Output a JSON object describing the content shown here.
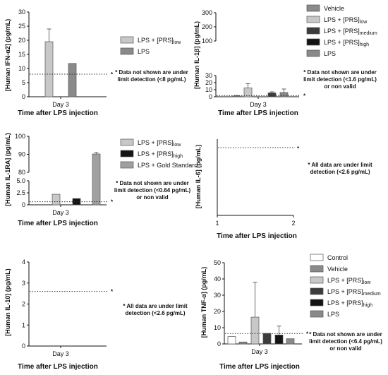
{
  "chart_data": [
    {
      "type": "bar",
      "ylabel": "[Human IFN-α2] (pg/mL)",
      "xtick": "Day 3",
      "xlabel": "Time after LPS injection",
      "yticks": [
        "0",
        "5",
        "10",
        "15",
        "20",
        "25",
        "30"
      ],
      "ylim": [
        0,
        30
      ],
      "threshold": 8,
      "note": [
        "* Data not shown are under",
        "limit detection (<8 pg/mL)"
      ],
      "series": [
        {
          "name": "LPS + [PRS]low",
          "value": 19.5,
          "error": 4.5,
          "color": "#c8c8c8"
        },
        {
          "name": "LPS",
          "value": 11.8,
          "error": 0,
          "color": "#8a8a8a"
        }
      ]
    },
    {
      "type": "bar",
      "ylabel": "[Human IL-1β] (pg/mL)",
      "xtick": "Day 3",
      "xlabel": "Time after LPS injection",
      "yticks": [
        "0",
        "10",
        "20",
        "30",
        "100",
        "200",
        "300"
      ],
      "ylim": [
        0,
        300
      ],
      "axis_break": [
        30,
        100
      ],
      "threshold": 1.6,
      "note": [
        "* Data not shown are under",
        "limit detection (<1.6 pg/mL)",
        "or non valid"
      ],
      "series": [
        {
          "name": "Vehicle",
          "value": 1.0,
          "error": 0.8,
          "color": "#8a8a8a"
        },
        {
          "name": "LPS + [PRS]low",
          "value": 12.5,
          "error": 6.0,
          "color": "#c8c8c8"
        },
        {
          "name": "LPS + [PRS]medium",
          "value": 5.5,
          "error": 1.5,
          "color": "#3c3c3c"
        },
        {
          "name": "LPS + [PRS]high",
          "value": null,
          "error": 0,
          "color": "#141414"
        },
        {
          "name": "LPS",
          "value": 6.0,
          "error": 5.0,
          "color": "#8a8a8a"
        }
      ]
    },
    {
      "type": "bar",
      "ylabel": "[Human IL-1RA] (pg/mL)",
      "xtick": "Day 3",
      "xlabel": "Time after LPS injection",
      "yticks": [
        "0",
        "2.5",
        "5.0",
        "80",
        "90",
        "100"
      ],
      "ylim": [
        0,
        100
      ],
      "axis_break": [
        5,
        80
      ],
      "threshold": 0.64,
      "note": [
        "* Data not shown are under",
        "limit detection (<0.64 pg/mL)",
        "or non valid"
      ],
      "series": [
        {
          "name": "LPS + [PRS]low",
          "value": 2.2,
          "error": 0,
          "color": "#c8c8c8"
        },
        {
          "name": "LPS + [PRS]high",
          "value": 1.3,
          "error": 0,
          "color": "#141414"
        },
        {
          "name": "LPS + Gold Standard",
          "value": 90.2,
          "error": 0.8,
          "color": "#a0a0a0"
        }
      ]
    },
    {
      "type": "bar",
      "ylabel": "[Human IL-6] (pg/mL)",
      "xticks": [
        "1",
        "2"
      ],
      "xlabel": "Time after LPS injection",
      "threshold": 2.6,
      "note": [
        "* All data are under limit",
        "detection (<2.6 pg/mL)"
      ],
      "series": []
    },
    {
      "type": "bar",
      "ylabel": "[Human IL-10] (pg/mL)",
      "xtick": "Day 3",
      "xlabel": "Time after LPS injection",
      "yticks": [
        "0",
        "1",
        "2",
        "3",
        "4"
      ],
      "ylim": [
        0,
        4
      ],
      "threshold": 2.6,
      "note": [
        "* All data are under limit",
        "detection (<2.6 pg/mL)"
      ],
      "series": []
    },
    {
      "type": "bar",
      "ylabel": "[Human TNF-α] (pg/mL)",
      "xtick": "Day 3",
      "xlabel": "Time after LPS injection",
      "yticks": [
        "0",
        "10",
        "20",
        "30",
        "40",
        "50"
      ],
      "ylim": [
        0,
        50
      ],
      "threshold": 6.4,
      "note": [
        "* Data not shown are under",
        "limit detection (<6.4 pg/mL)",
        "or non valid"
      ],
      "series": [
        {
          "name": "Control",
          "value": 4.5,
          "error": 0,
          "color": "#ffffff"
        },
        {
          "name": "Vehicle",
          "value": 1.2,
          "error": 0,
          "color": "#8a8a8a"
        },
        {
          "name": "LPS + [PRS]low",
          "value": 16.5,
          "error": 21.5,
          "color": "#c8c8c8"
        },
        {
          "name": "LPS + [PRS]medium",
          "value": 6.5,
          "error": 0,
          "color": "#3c3c3c"
        },
        {
          "name": "LPS + [PRS]high",
          "value": 5.5,
          "error": 5.5,
          "color": "#141414"
        },
        {
          "name": "LPS",
          "value": 3.2,
          "error": 0,
          "color": "#8a8a8a"
        }
      ]
    }
  ],
  "legends": {
    "p1": [
      {
        "base": "LPS + [PRS]",
        "sub": "low",
        "color": "#c8c8c8"
      },
      {
        "base": "LPS",
        "sub": "",
        "color": "#8a8a8a"
      }
    ],
    "p2": [
      {
        "base": "Vehicle",
        "sub": "",
        "color": "#8a8a8a"
      },
      {
        "base": "LPS + [PRS]",
        "sub": "low",
        "color": "#c8c8c8"
      },
      {
        "base": "LPS + [PRS]",
        "sub": "medium",
        "color": "#3c3c3c"
      },
      {
        "base": "LPS + [PRS]",
        "sub": "high",
        "color": "#141414"
      },
      {
        "base": "LPS",
        "sub": "",
        "color": "#8a8a8a"
      }
    ],
    "p3": [
      {
        "base": "LPS + [PRS]",
        "sub": "low",
        "color": "#c8c8c8"
      },
      {
        "base": "LPS + [PRS]",
        "sub": "high",
        "color": "#141414"
      },
      {
        "base": "LPS + Gold Standard",
        "sub": "",
        "color": "#a0a0a0"
      }
    ],
    "p6": [
      {
        "base": "Control",
        "sub": "",
        "color": "#ffffff"
      },
      {
        "base": "Vehicle",
        "sub": "",
        "color": "#8a8a8a"
      },
      {
        "base": "LPS + [PRS]",
        "sub": "low",
        "color": "#c8c8c8"
      },
      {
        "base": "LPS + [PRS]",
        "sub": "medium",
        "color": "#3c3c3c"
      },
      {
        "base": "LPS + [PRS]",
        "sub": "high",
        "color": "#141414"
      },
      {
        "base": "LPS",
        "sub": "",
        "color": "#8a8a8a"
      }
    ]
  }
}
